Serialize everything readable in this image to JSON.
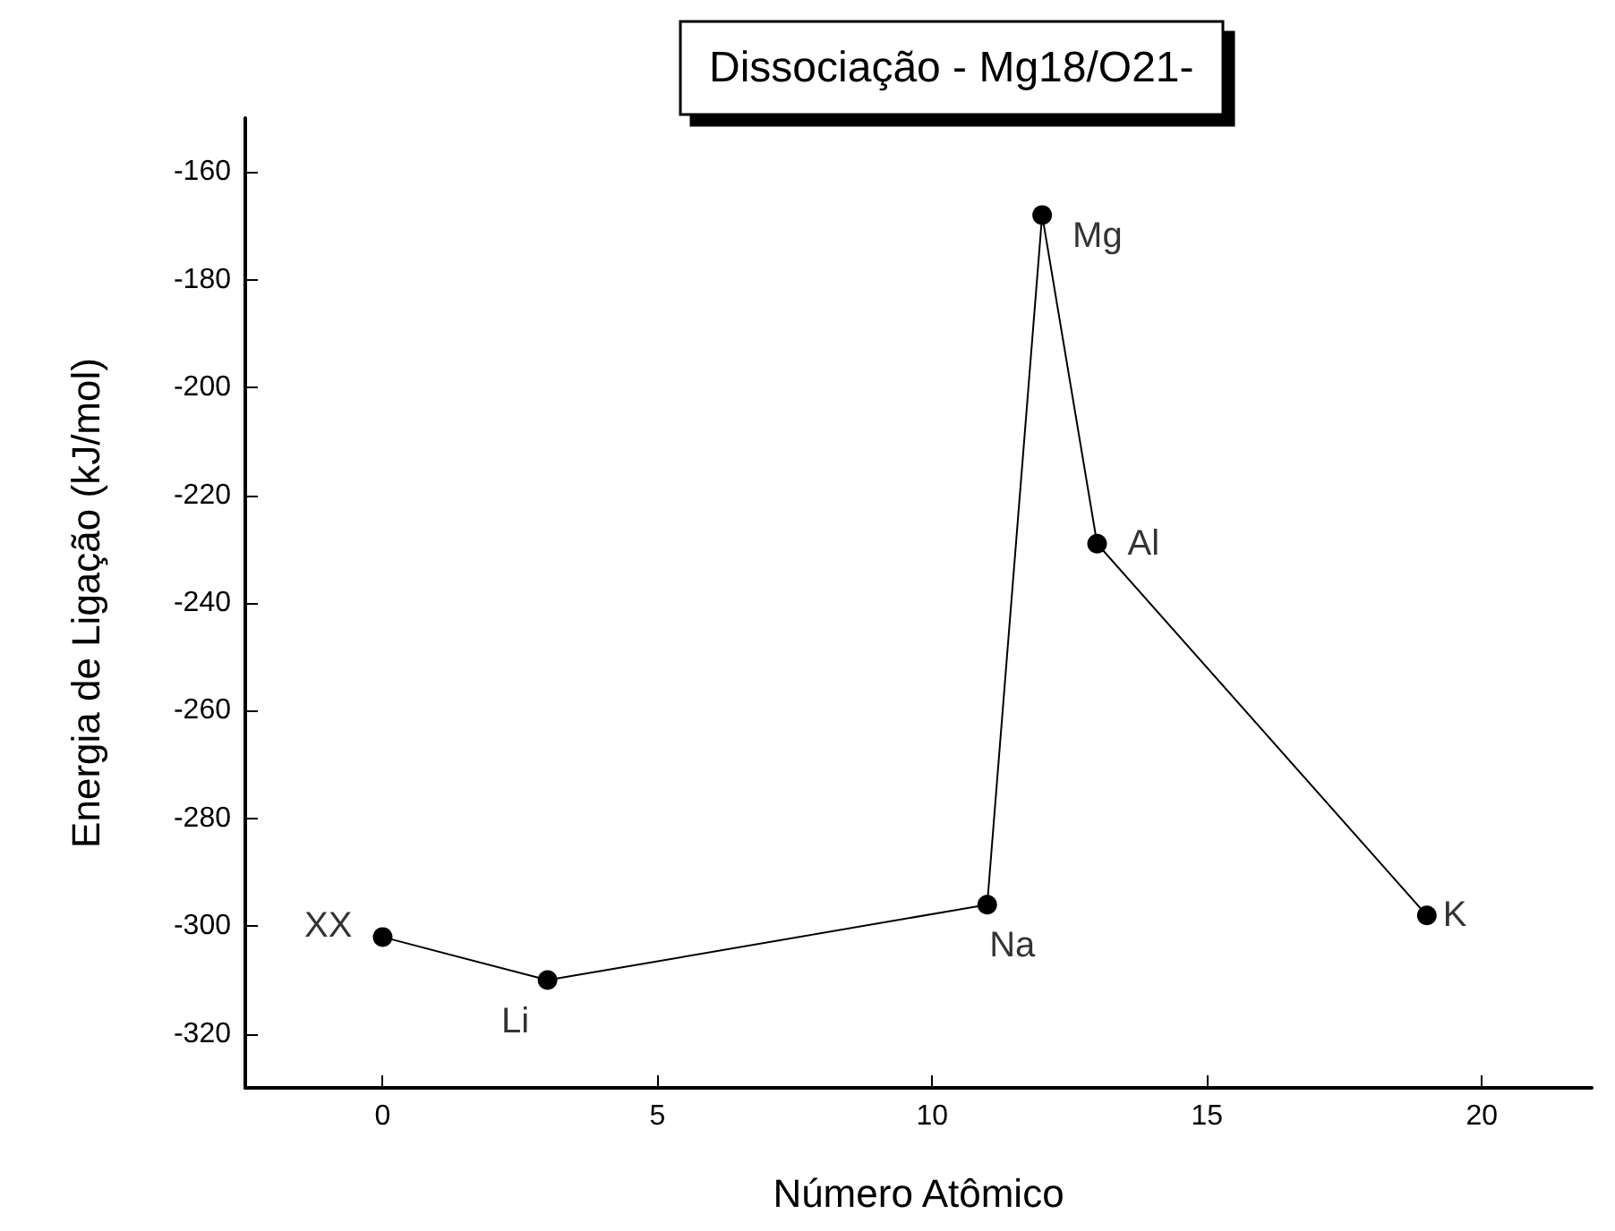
{
  "chart_data": {
    "type": "line",
    "title": "Dissociação - Mg18/O21-",
    "xlabel": "Número Atômico",
    "ylabel": "Energia de Ligação (kJ/mol)",
    "x": [
      0,
      3,
      11,
      12,
      13,
      19
    ],
    "series": [
      {
        "color": "#000000",
        "values": [
          -302,
          -310,
          -296,
          -168,
          -229,
          -298
        ]
      }
    ],
    "annotations": [
      {
        "text": "XX",
        "x": 0,
        "y": -302
      },
      {
        "text": "Li",
        "x": 3,
        "y": -310
      },
      {
        "text": "Na",
        "x": 11,
        "y": -296
      },
      {
        "text": "Mg",
        "x": 12,
        "y": -168
      },
      {
        "text": "Al",
        "x": 13,
        "y": -229
      },
      {
        "text": "K",
        "x": 19,
        "y": -298
      }
    ],
    "xlim": [
      -2.5,
      22
    ],
    "xticks": [
      0,
      5,
      10,
      15,
      20
    ],
    "ylim": [
      -330,
      -150
    ],
    "yticks": [
      -320,
      -300,
      -280,
      -260,
      -240,
      -220,
      -200,
      -180,
      -160
    ],
    "grid": false,
    "marker": "circle",
    "line_style": "solid"
  }
}
